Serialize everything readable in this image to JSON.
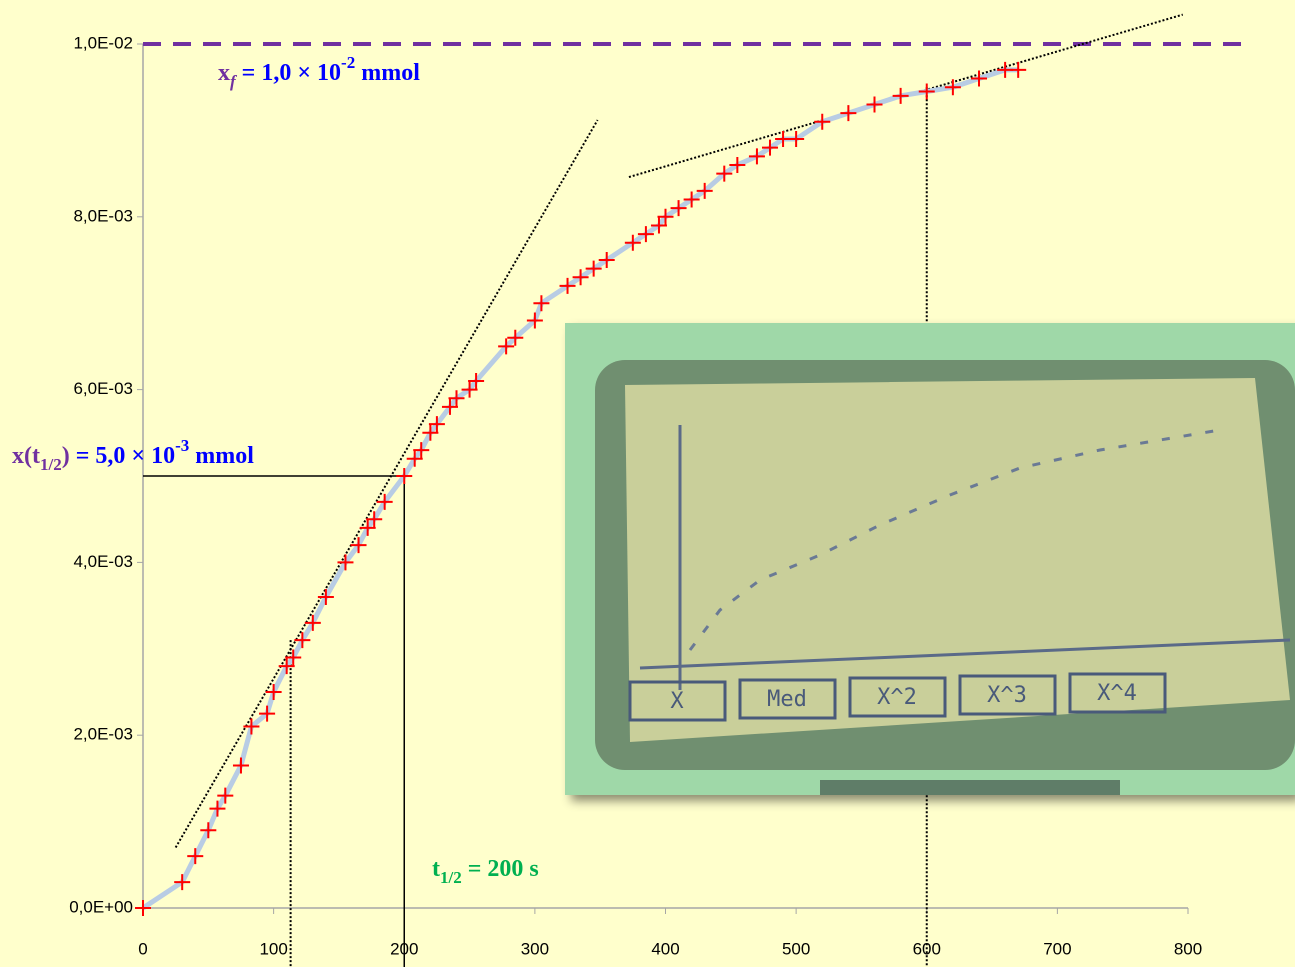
{
  "chart_data": {
    "type": "scatter",
    "xlim": [
      0,
      800
    ],
    "xticks": [
      0,
      100,
      200,
      300,
      400,
      500,
      600,
      700,
      800
    ],
    "ylim": [
      0,
      0.01
    ],
    "yticks": [
      {
        "value": 0,
        "label": "0,0E+00"
      },
      {
        "value": 0.002,
        "label": "2,0E-03"
      },
      {
        "value": 0.004,
        "label": "4,0E-03"
      },
      {
        "value": 0.006,
        "label": "6,0E-03"
      },
      {
        "value": 0.008,
        "label": "8,0E-03"
      },
      {
        "value": 0.01,
        "label": "1,0E-02"
      }
    ],
    "series": [
      {
        "color": "#ff0000",
        "line_color": "#b8cce4",
        "x": [
          0,
          30,
          40,
          50,
          57,
          63,
          75,
          83,
          95,
          100,
          110,
          115,
          122,
          130,
          140,
          155,
          165,
          172,
          177,
          185,
          200,
          208,
          213,
          220,
          225,
          235,
          240,
          250,
          255,
          278,
          285,
          300,
          305,
          325,
          335,
          345,
          355,
          375,
          385,
          395,
          400,
          410,
          420,
          430,
          445,
          455,
          470,
          480,
          490,
          500,
          520,
          540,
          560,
          580,
          600,
          620,
          640,
          660,
          670
        ],
        "values": [
          0,
          0.0003,
          0.0006,
          0.0009,
          0.00115,
          0.0013,
          0.00165,
          0.0021,
          0.00225,
          0.0025,
          0.0028,
          0.0029,
          0.0031,
          0.0033,
          0.0036,
          0.004,
          0.0042,
          0.0044,
          0.0045,
          0.0047,
          0.005,
          0.0052,
          0.0053,
          0.0055,
          0.0056,
          0.0058,
          0.0059,
          0.006,
          0.0061,
          0.0065,
          0.0066,
          0.0068,
          0.007,
          0.0072,
          0.0073,
          0.0074,
          0.0075,
          0.0077,
          0.0078,
          0.0079,
          0.008,
          0.0081,
          0.0082,
          0.0083,
          0.0085,
          0.0086,
          0.0087,
          0.0088,
          0.0089,
          0.0089,
          0.0091,
          0.0092,
          0.0093,
          0.0094,
          0.00945,
          0.0095,
          0.0096,
          0.0097,
          0.0097
        ]
      }
    ],
    "asymptote": {
      "value": 0.01,
      "color": "#7030a0"
    },
    "half_time": 200,
    "half_value": 0.005,
    "tangents": [
      [
        [
          25,
          0.0007
        ],
        [
          348,
          0.00912
        ]
      ],
      [
        [
          372,
          0.00846
        ],
        [
          796,
          0.01034
        ]
      ]
    ],
    "guides": [
      [
        113,
        0.0031
      ],
      [
        600,
        0.0095
      ]
    ],
    "annotations": [
      {
        "parts": [
          "x",
          "f",
          " = 1,0 × 10",
          "-2",
          " mmol"
        ]
      },
      {
        "parts": [
          "x(t",
          "1/2",
          ")",
          " = 5,0 × 10",
          "-3",
          " mmol"
        ]
      },
      {
        "parts": [
          "t",
          "1/2",
          " = 200 s"
        ]
      }
    ]
  },
  "inset": {
    "menu": [
      "X",
      "Med",
      "X^2",
      "X^3",
      "X^4"
    ]
  }
}
